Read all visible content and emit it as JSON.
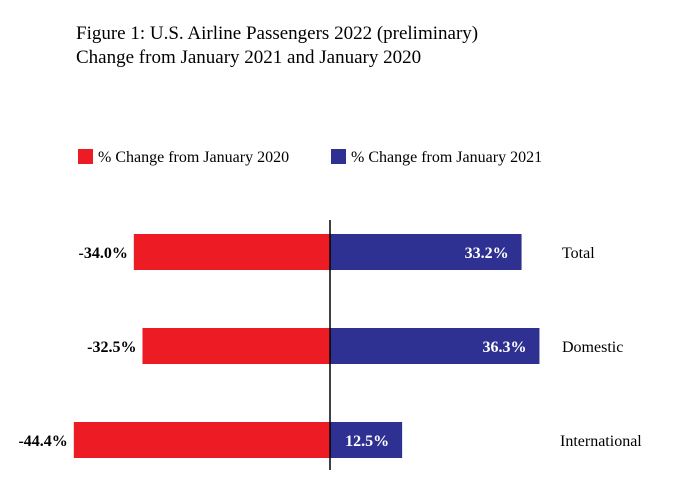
{
  "chart_data": {
    "type": "bar",
    "orientation": "horizontal",
    "title": "Figure 1: U.S. Airline Passengers 2022 (preliminary)",
    "subtitle": "Change from January 2021 and January 2020",
    "categories": [
      "Total",
      "Domestic",
      "International"
    ],
    "series": [
      {
        "name": "% Change from January 2020",
        "values": [
          -34.0,
          -32.5,
          -44.4
        ],
        "labels": [
          "-34.0%",
          "-32.5%",
          "-44.4%"
        ]
      },
      {
        "name": "% Change from January 2021",
        "values": [
          33.2,
          36.3,
          12.5
        ],
        "labels": [
          "33.2%",
          "36.3%",
          "12.5%"
        ]
      }
    ],
    "xlim": [
      -44.4,
      36.3
    ],
    "legend": "top-left",
    "grid": false
  },
  "colors": {
    "series_2020": "#ed1c24",
    "series_2021": "#2e3192",
    "axis": "#000000",
    "inner_label": "#ffffff"
  }
}
